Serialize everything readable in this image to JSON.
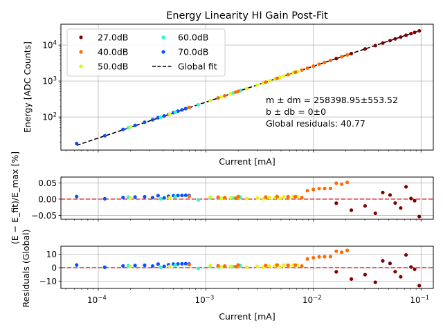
{
  "chart_data": [
    {
      "type": "scatter",
      "title": "Energy Linearity HI Gain Post-Fit",
      "xlabel": "Current [mA]",
      "ylabel": "Energy [ADC Counts]",
      "xscale": "log",
      "yscale": "log",
      "xlim": [
        4.5e-05,
        0.13
      ],
      "ylim": [
        12,
        38000
      ],
      "x_ticks": [
        {
          "value": 0.0001,
          "base": "10",
          "exp": "−4"
        },
        {
          "value": 0.001,
          "base": "10",
          "exp": "−3"
        },
        {
          "value": 0.01,
          "base": "10",
          "exp": "−2"
        },
        {
          "value": 0.1,
          "base": "10",
          "exp": "−1"
        }
      ],
      "y_ticks": [
        {
          "value": 100,
          "base": "10",
          "exp": "2"
        },
        {
          "value": 1000,
          "base": "10",
          "exp": "3"
        },
        {
          "value": 10000,
          "base": "10",
          "exp": "4"
        }
      ],
      "legend": {
        "placement": "top-left",
        "entries": [
          {
            "label": "27.0dB",
            "color": "#800000",
            "marker": "dot"
          },
          {
            "label": "40.0dB",
            "color": "#ff6a00",
            "marker": "dot"
          },
          {
            "label": "50.0dB",
            "color": "#e2f519",
            "marker": "dot"
          },
          {
            "label": "60.0dB",
            "color": "#2ff7c8",
            "marker": "dot"
          },
          {
            "label": "70.0dB",
            "color": "#0a50ff",
            "marker": "dot"
          },
          {
            "label": "Global fit",
            "color": "#000000",
            "marker": "dashed-line"
          }
        ]
      },
      "annotation": {
        "line1": "m ± dm = 258398.95±553.52",
        "line2": "b ± db = 0±0",
        "line3": "Global residuals: 40.77"
      },
      "fit": {
        "slope": 258398.95,
        "intercept": 0,
        "x_range": [
          6.3e-05,
          0.1
        ]
      }
    },
    {
      "type": "scatter",
      "ylabel": "(E − E_fit)/E_max [%]",
      "xscale": "log",
      "ylim": [
        -0.062,
        0.068
      ],
      "y_ticks": [
        "0.05",
        "0.00",
        "−0.05"
      ],
      "y_tick_values": [
        0.05,
        0.0,
        -0.05
      ],
      "reference_line": 0
    },
    {
      "type": "scatter",
      "xlabel": "Current [mA]",
      "ylabel": "Residuals (Global)",
      "xscale": "log",
      "ylim": [
        -15.5,
        16
      ],
      "y_ticks": [
        "10",
        "0",
        "−10"
      ],
      "y_tick_values": [
        10,
        0,
        -10
      ],
      "reference_line": 0,
      "x_ticks": [
        {
          "value": 0.0001,
          "base": "10",
          "exp": "−4"
        },
        {
          "value": 0.001,
          "base": "10",
          "exp": "−3"
        },
        {
          "value": 0.01,
          "base": "10",
          "exp": "−2"
        },
        {
          "value": 0.1,
          "base": "10",
          "exp": "−1"
        }
      ]
    }
  ],
  "series_points": {
    "gain70": {
      "color": "#0a50ff",
      "x": [
        6.3e-05,
        0.000115,
        0.00017,
        0.00022,
        0.00027,
        0.00032,
        0.00036,
        0.00041,
        0.00045,
        0.0005,
        0.00055,
        0.0006,
        0.00065,
        0.0007
      ],
      "res": [
        2.0,
        0.3,
        1.3,
        1.6,
        1.8,
        1.2,
        2.7,
        1.0,
        2.2,
        2.7,
        2.8,
        2.9,
        3.0,
        2.8
      ]
    },
    "gain60": {
      "color": "#2ff7c8",
      "x": [
        0.00019,
        0.00038,
        0.00052,
        0.00085,
        0.0011,
        0.0013,
        0.0015,
        0.0018,
        0.0021
      ],
      "res": [
        1.6,
        0.3,
        1.8,
        -0.6,
        0.9,
        0.6,
        1.1,
        0.8,
        1.5
      ]
    },
    "gain50": {
      "color": "#e2f519",
      "x": [
        0.0002,
        0.00046,
        0.0011,
        0.0014,
        0.0017,
        0.002,
        0.0024,
        0.003,
        0.0034,
        0.0039,
        0.0044,
        0.0049,
        0.0053,
        0.0059,
        0.0065,
        0.0071
      ],
      "res": [
        0.9,
        1.0,
        1.7,
        0.6,
        1.1,
        1.4,
        0.4,
        1.0,
        0.3,
        1.2,
        1.3,
        0.6,
        1.9,
        1.5,
        2.0,
        1.9
      ]
    },
    "gain40": {
      "color": "#ff6a00",
      "x": [
        0.0007,
        0.0013,
        0.0015,
        0.0019,
        0.002,
        0.0036,
        0.0046,
        0.0058,
        0.0068,
        0.0078,
        0.0088,
        0.01,
        0.0113,
        0.0127,
        0.0144,
        0.0163,
        0.0183,
        0.0206
      ],
      "res": [
        2.2,
        1.5,
        1.2,
        0.7,
        2.0,
        1.6,
        2.0,
        1.8,
        1.9,
        1.2,
        6.5,
        7.4,
        8.1,
        8.2,
        8.3,
        12.3,
        11.5,
        12.9
      ]
    },
    "gain27": {
      "color": "#800000",
      "x": [
        0.0163,
        0.0225,
        0.0302,
        0.0376,
        0.0441,
        0.0515,
        0.0575,
        0.0647,
        0.0725,
        0.0807,
        0.0872,
        0.0962
      ],
      "res": [
        -3.1,
        -8.5,
        -5.2,
        -10.9,
        5.1,
        3.2,
        -3.0,
        -6.8,
        9.5,
        0.5,
        -1.2,
        -13.4
      ]
    }
  },
  "energy_max": 25000
}
